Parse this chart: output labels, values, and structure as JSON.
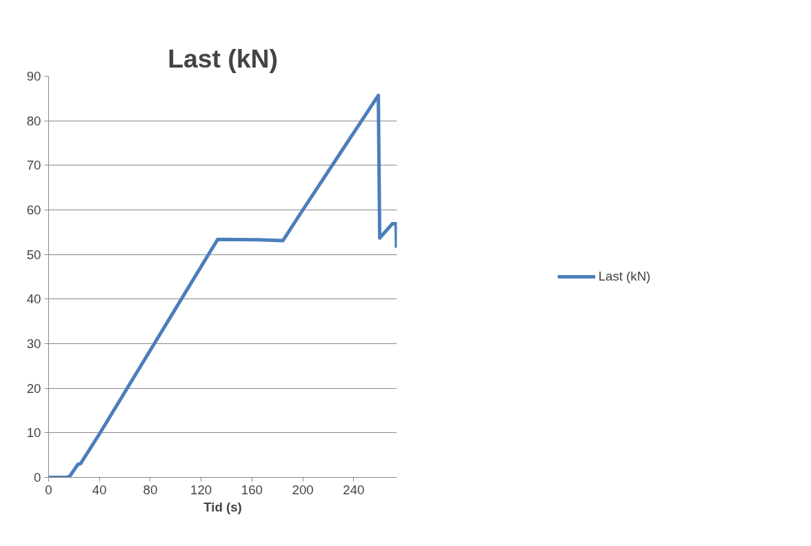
{
  "chart_data": {
    "type": "line",
    "title": "Last (kN)",
    "xlabel": "Tid (s)",
    "xlim": [
      0,
      274
    ],
    "xticks": [
      0,
      40,
      80,
      120,
      160,
      200,
      240
    ],
    "ylim": [
      0,
      90
    ],
    "yticks": [
      0,
      10,
      20,
      30,
      40,
      50,
      60,
      70,
      80,
      90
    ],
    "grid": "y",
    "legend": "right",
    "marker": "none",
    "line_style": "solid",
    "series": [
      {
        "name": "Last (kN)",
        "color": "#4a7ebb",
        "x": [
          0,
          14.5,
          16.7,
          23,
          25.2,
          40.3,
          133,
          164.5,
          184.3,
          200,
          259.4,
          260.5,
          270.4,
          273.4,
          273.7
        ],
        "values": [
          0,
          0,
          0.3,
          2.9,
          3.1,
          9.9,
          53.4,
          53.3,
          53.1,
          60.0,
          85.7,
          53.7,
          56.9,
          56.9,
          51.5
        ]
      }
    ]
  }
}
